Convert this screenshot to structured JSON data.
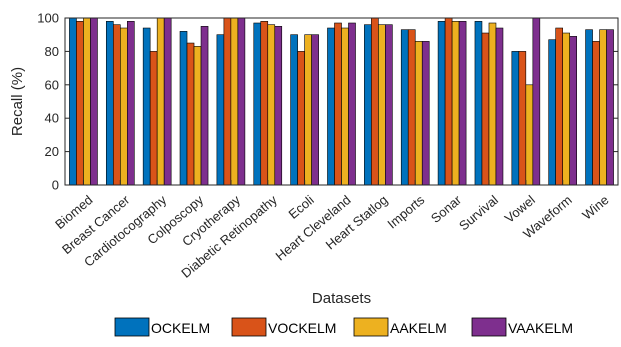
{
  "chart_data": {
    "type": "bar",
    "xlabel": "Datasets",
    "ylabel": "Recall (%)",
    "ylim": [
      0,
      100
    ],
    "yticks": [
      0,
      20,
      40,
      60,
      80,
      100
    ],
    "categories": [
      "Biomed",
      "Breast Cancer",
      "Cardiotocography",
      "Colposcopy",
      "Cryotherapy",
      "Diabetic Retinopathy",
      "Ecoli",
      "Heart Cleveland",
      "Heart Statlog",
      "Imports",
      "Sonar",
      "Survival",
      "Vowel",
      "Waveform",
      "Wine"
    ],
    "series": [
      {
        "name": "OCKELM",
        "color": "#0072BD",
        "values": [
          100,
          98,
          94,
          92,
          90,
          97,
          90,
          94,
          96,
          93,
          98,
          98,
          80,
          87,
          93
        ]
      },
      {
        "name": "VOCKELM",
        "color": "#D95319",
        "values": [
          98,
          96,
          80,
          85,
          100,
          98,
          80,
          97,
          100,
          93,
          100,
          91,
          80,
          94,
          86
        ]
      },
      {
        "name": "AAKELM",
        "color": "#EDB120",
        "values": [
          100,
          94,
          100,
          83,
          100,
          96,
          90,
          94,
          96,
          86,
          98,
          97,
          60,
          91,
          93
        ]
      },
      {
        "name": "VAAKELM",
        "color": "#7E2F8E",
        "values": [
          100,
          98,
          100,
          95,
          100,
          95,
          90,
          97,
          96,
          86,
          98,
          94,
          100,
          89,
          93
        ]
      }
    ],
    "legend_position": "bottom",
    "grid": false
  }
}
